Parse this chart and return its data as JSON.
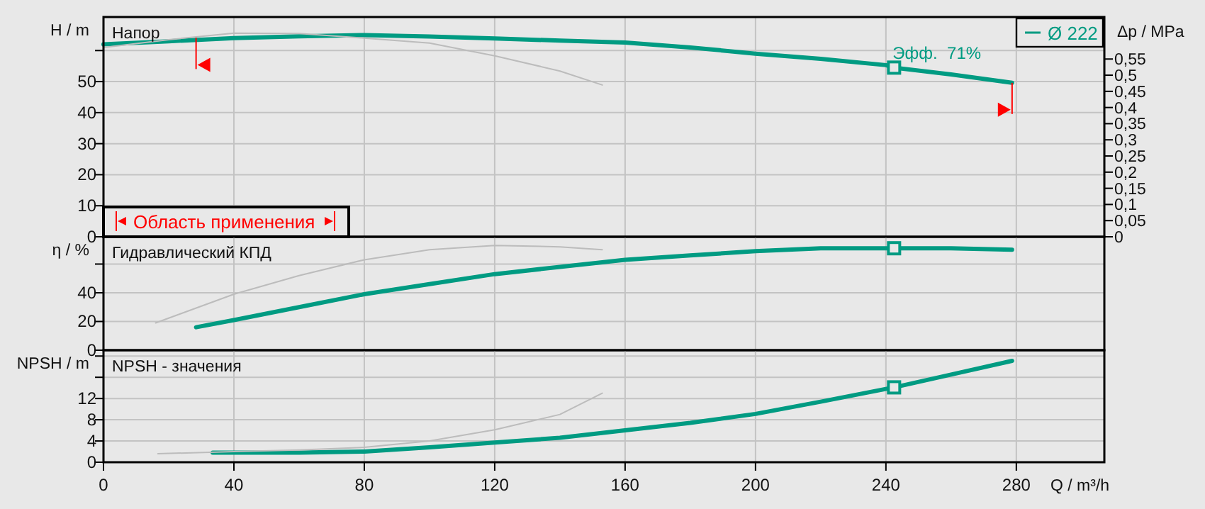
{
  "chart_data": [
    {
      "type": "line",
      "title": "Напор",
      "ylabel": "H / m",
      "y2label": "Δp / MPa",
      "legend": "top right",
      "grid": true,
      "tick_labels": "y",
      "xlim": [
        0,
        307
      ],
      "xticks": [
        0,
        40,
        80,
        120,
        160,
        200,
        240,
        280
      ],
      "ylim": [
        0,
        70.8
      ],
      "yticks": [
        0,
        10,
        20,
        30,
        40,
        50,
        {
          "value": 60,
          "label": null
        }
      ],
      "y2lim": [
        0,
        0.68
      ],
      "y2ticks": [
        {
          "value": 0,
          "label": "0"
        },
        {
          "value": 0.05,
          "label": "0,05"
        },
        {
          "value": 0.1,
          "label": "0,1"
        },
        {
          "value": 0.15,
          "label": "0,15"
        },
        {
          "value": 0.2,
          "label": "0,2"
        },
        {
          "value": 0.25,
          "label": "0,25"
        },
        {
          "value": 0.3,
          "label": "0,3"
        },
        {
          "value": 0.35,
          "label": "0,35"
        },
        {
          "value": 0.4,
          "label": "0,4"
        },
        {
          "value": 0.45,
          "label": "0,45"
        },
        {
          "value": 0.5,
          "label": "0,5"
        },
        {
          "value": 0.55,
          "label": "0,55"
        }
      ],
      "annotations": [
        {
          "text": "Эфф.  71%",
          "x": 242.5,
          "y": 54.5
        },
        "Область применения"
      ],
      "series": [
        {
          "name": "Ø 222",
          "color": "#009b82",
          "x": [
            0,
            20,
            40,
            60,
            80,
            100,
            120,
            140,
            160,
            180,
            200,
            220,
            240,
            242.5,
            260,
            278.7
          ],
          "values": [
            62,
            63,
            64,
            64.6,
            65,
            64.5,
            63.9,
            63.2,
            62.6,
            61,
            59,
            57.3,
            55.3,
            54.5,
            52.3,
            49.6
          ]
        },
        {
          "color": "#bcbcbc",
          "x": [
            0,
            20,
            40,
            60,
            80,
            100,
            120,
            140,
            153
          ],
          "values": [
            61,
            63.5,
            65.6,
            65.5,
            64,
            62.4,
            58.3,
            53.4,
            48.9
          ]
        },
        {
          "type": "scatter",
          "marker": "square",
          "color": "#009b82",
          "x": [
            242.5
          ],
          "values": [
            54.5
          ]
        }
      ]
    },
    {
      "type": "line",
      "title": "Гидравлический КПД",
      "ylabel": "η / %",
      "grid": true,
      "tick_labels": "y",
      "xlim": [
        0,
        307
      ],
      "xticks": [
        0,
        40,
        80,
        120,
        160,
        200,
        240,
        280
      ],
      "ylim": [
        0,
        79
      ],
      "yticks": [
        0,
        20,
        40,
        {
          "value": 60,
          "label": null
        }
      ],
      "series": [
        {
          "color": "#009b82",
          "x": [
            28.4,
            40,
            60,
            80,
            100,
            120,
            140,
            160,
            180,
            200,
            220,
            240,
            242.5,
            260,
            278.7
          ],
          "values": [
            16,
            21,
            30,
            39,
            46,
            53,
            58,
            63,
            66,
            69,
            71,
            71,
            71,
            71,
            70
          ]
        },
        {
          "color": "#bcbcbc",
          "x": [
            16,
            40,
            60,
            80,
            100,
            120,
            140,
            153
          ],
          "values": [
            19,
            39,
            52,
            63,
            70,
            73,
            72,
            70
          ]
        },
        {
          "type": "scatter",
          "marker": "square",
          "color": "#009b82",
          "x": [
            242.5
          ],
          "values": [
            71
          ]
        }
      ]
    },
    {
      "type": "line",
      "title": "NPSH - значения",
      "ylabel": "NPSH / m",
      "xlabel": "Q / m³/h",
      "grid": true,
      "xlim": [
        0,
        307
      ],
      "xticks": [
        0,
        40,
        80,
        120,
        160,
        200,
        240,
        280
      ],
      "ylim": [
        0,
        21.1
      ],
      "yticks": [
        0,
        4,
        8,
        12,
        {
          "value": 16,
          "label": null
        },
        {
          "value": 20,
          "label": null
        }
      ],
      "series": [
        {
          "color": "#009b82",
          "x": [
            33.5,
            60,
            80,
            100,
            120,
            140,
            160,
            180,
            200,
            220,
            242.5,
            260,
            278.7
          ],
          "values": [
            1.8,
            1.8,
            2,
            2.8,
            3.7,
            4.6,
            6,
            7.4,
            9.1,
            11.4,
            14.1,
            16.5,
            19.1
          ]
        },
        {
          "color": "#bcbcbc",
          "x": [
            16.7,
            40,
            60,
            80,
            100,
            120,
            140,
            153
          ],
          "values": [
            1.6,
            2,
            2.3,
            2.8,
            4,
            6.1,
            9,
            13
          ]
        },
        {
          "type": "scatter",
          "marker": "square",
          "color": "#009b82",
          "x": [
            242.5
          ],
          "values": [
            14.1
          ]
        }
      ]
    }
  ]
}
